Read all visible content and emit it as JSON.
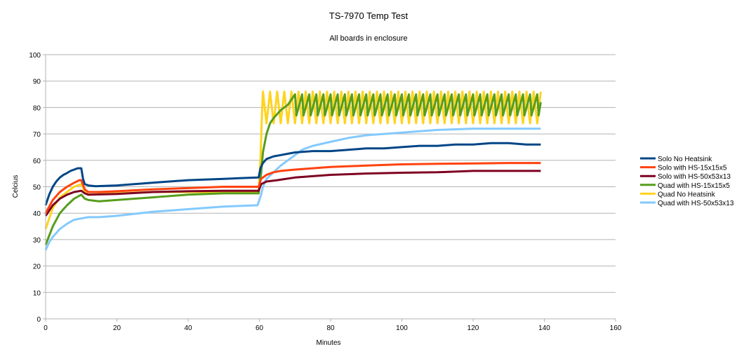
{
  "chart_data": {
    "type": "line",
    "title": "TS-7970 Temp Test",
    "subtitle": "All boards in enclosure",
    "xlabel": "Minutes",
    "ylabel": "Celcius",
    "xlim": [
      0,
      160
    ],
    "ylim": [
      0,
      100
    ],
    "xticks": [
      0,
      20,
      40,
      60,
      80,
      100,
      120,
      140,
      160
    ],
    "yticks": [
      0,
      10,
      20,
      30,
      40,
      50,
      60,
      70,
      80,
      90,
      100
    ],
    "grid": "horizontal",
    "legend_position": "right",
    "series": [
      {
        "name": "Solo No Heatsink",
        "color": "#004586",
        "points": [
          [
            0,
            43
          ],
          [
            1,
            47
          ],
          [
            2,
            50
          ],
          [
            3,
            52
          ],
          [
            4,
            53.5
          ],
          [
            5,
            54.5
          ],
          [
            6,
            55.2
          ],
          [
            7,
            56
          ],
          [
            8,
            56.5
          ],
          [
            9,
            57
          ],
          [
            10,
            57
          ],
          [
            10.5,
            53
          ],
          [
            11,
            51
          ],
          [
            12,
            50.5
          ],
          [
            14,
            50.2
          ],
          [
            20,
            50.5
          ],
          [
            30,
            51.5
          ],
          [
            40,
            52.5
          ],
          [
            50,
            53
          ],
          [
            55,
            53.3
          ],
          [
            59.8,
            53.5
          ],
          [
            60.3,
            57
          ],
          [
            61,
            59
          ],
          [
            62,
            60.5
          ],
          [
            64,
            61.5
          ],
          [
            66,
            62
          ],
          [
            68,
            62.5
          ],
          [
            70,
            63
          ],
          [
            75,
            63.5
          ],
          [
            80,
            63.5
          ],
          [
            85,
            64
          ],
          [
            90,
            64.5
          ],
          [
            95,
            64.5
          ],
          [
            100,
            65
          ],
          [
            105,
            65.5
          ],
          [
            110,
            65.5
          ],
          [
            115,
            66
          ],
          [
            120,
            66
          ],
          [
            125,
            66.5
          ],
          [
            130,
            66.5
          ],
          [
            135,
            66
          ],
          [
            139,
            66
          ]
        ]
      },
      {
        "name": "Solo with HS-15x15x5",
        "color": "#ff420e",
        "points": [
          [
            0,
            40
          ],
          [
            2,
            45
          ],
          [
            4,
            48
          ],
          [
            6,
            50
          ],
          [
            8,
            51.5
          ],
          [
            9.5,
            52.5
          ],
          [
            10,
            52.5
          ],
          [
            11,
            49
          ],
          [
            12,
            48
          ],
          [
            15,
            48
          ],
          [
            20,
            48.3
          ],
          [
            30,
            49
          ],
          [
            40,
            49.5
          ],
          [
            50,
            50
          ],
          [
            59.8,
            50
          ],
          [
            60.5,
            53
          ],
          [
            62,
            54.5
          ],
          [
            64,
            55.5
          ],
          [
            66,
            56
          ],
          [
            70,
            56.5
          ],
          [
            75,
            57
          ],
          [
            80,
            57.5
          ],
          [
            90,
            58
          ],
          [
            100,
            58.5
          ],
          [
            110,
            58.7
          ],
          [
            120,
            58.8
          ],
          [
            130,
            59
          ],
          [
            139,
            59
          ]
        ]
      },
      {
        "name": "Solo with HS-50x53x13",
        "color": "#7e0021",
        "points": [
          [
            0,
            39
          ],
          [
            2,
            43
          ],
          [
            4,
            45.5
          ],
          [
            6,
            47
          ],
          [
            8,
            48
          ],
          [
            10,
            48.5
          ],
          [
            11,
            47.5
          ],
          [
            12,
            47
          ],
          [
            20,
            47.3
          ],
          [
            30,
            48
          ],
          [
            40,
            48.3
          ],
          [
            50,
            48.5
          ],
          [
            59.8,
            48.5
          ],
          [
            60.5,
            51
          ],
          [
            62,
            52
          ],
          [
            65,
            52.5
          ],
          [
            70,
            53.5
          ],
          [
            75,
            54
          ],
          [
            80,
            54.5
          ],
          [
            90,
            55
          ],
          [
            100,
            55.3
          ],
          [
            110,
            55.5
          ],
          [
            120,
            56
          ],
          [
            130,
            56
          ],
          [
            139,
            56
          ]
        ]
      },
      {
        "name": "Quad with HS-15x15x5",
        "color": "#579d1c",
        "points": [
          [
            0,
            28
          ],
          [
            2,
            35
          ],
          [
            4,
            40
          ],
          [
            6,
            43
          ],
          [
            8,
            45.5
          ],
          [
            10,
            47
          ],
          [
            11,
            45.5
          ],
          [
            12,
            45
          ],
          [
            15,
            44.5
          ],
          [
            20,
            45
          ],
          [
            30,
            46
          ],
          [
            40,
            47
          ],
          [
            50,
            47.5
          ],
          [
            59.8,
            47.5
          ],
          [
            60.5,
            55
          ],
          [
            61,
            63
          ],
          [
            62,
            70
          ],
          [
            63,
            74
          ],
          [
            64,
            76
          ],
          [
            66,
            79
          ],
          [
            68,
            81
          ],
          [
            70,
            85
          ],
          [
            70.4,
            77
          ],
          [
            72,
            85
          ],
          [
            72.4,
            77
          ],
          [
            74,
            85
          ],
          [
            74.4,
            77
          ],
          [
            76,
            85
          ],
          [
            76.4,
            77
          ],
          [
            78,
            85
          ],
          [
            78.4,
            77
          ],
          [
            80,
            85
          ],
          [
            80.4,
            77
          ],
          [
            82,
            85
          ],
          [
            82.4,
            77
          ],
          [
            84,
            85
          ],
          [
            84.4,
            77
          ],
          [
            86,
            85
          ],
          [
            86.4,
            77
          ],
          [
            88,
            85
          ],
          [
            88.4,
            77
          ],
          [
            90,
            85
          ],
          [
            90.4,
            77
          ],
          [
            92,
            85
          ],
          [
            92.4,
            77
          ],
          [
            94,
            85
          ],
          [
            94.4,
            77
          ],
          [
            96,
            85
          ],
          [
            96.4,
            77
          ],
          [
            98,
            85
          ],
          [
            98.4,
            77
          ],
          [
            100,
            85
          ],
          [
            100.4,
            77
          ],
          [
            102,
            85
          ],
          [
            102.4,
            77
          ],
          [
            104,
            85
          ],
          [
            104.4,
            77
          ],
          [
            106,
            85
          ],
          [
            106.4,
            77
          ],
          [
            108,
            85
          ],
          [
            108.4,
            77
          ],
          [
            110,
            85
          ],
          [
            110.4,
            77
          ],
          [
            112,
            85
          ],
          [
            112.4,
            77
          ],
          [
            114,
            85
          ],
          [
            114.4,
            77
          ],
          [
            116,
            85
          ],
          [
            116.4,
            77
          ],
          [
            118,
            85
          ],
          [
            118.4,
            77
          ],
          [
            120,
            85
          ],
          [
            120.4,
            77
          ],
          [
            122,
            85
          ],
          [
            122.4,
            77
          ],
          [
            124,
            85
          ],
          [
            124.4,
            77
          ],
          [
            126,
            85
          ],
          [
            126.4,
            77
          ],
          [
            128,
            85
          ],
          [
            128.4,
            77
          ],
          [
            130,
            85
          ],
          [
            130.4,
            77
          ],
          [
            132,
            85
          ],
          [
            132.4,
            77
          ],
          [
            134,
            85
          ],
          [
            134.4,
            77
          ],
          [
            136,
            85
          ],
          [
            136.4,
            77
          ],
          [
            138,
            85
          ],
          [
            138.4,
            77
          ],
          [
            139,
            82
          ]
        ]
      },
      {
        "name": "Quad No Heatsink",
        "color": "#ffd320",
        "points": [
          [
            0,
            34
          ],
          [
            2,
            42
          ],
          [
            4,
            46
          ],
          [
            6,
            48
          ],
          [
            8,
            50
          ],
          [
            10,
            51
          ],
          [
            11,
            48
          ],
          [
            12,
            47
          ],
          [
            20,
            47.5
          ],
          [
            30,
            48
          ],
          [
            40,
            48
          ],
          [
            50,
            48
          ],
          [
            59.8,
            48
          ],
          [
            60.3,
            60
          ],
          [
            60.8,
            80
          ],
          [
            61,
            86
          ],
          [
            62,
            74
          ],
          [
            63,
            86
          ],
          [
            64,
            74
          ],
          [
            65,
            86
          ],
          [
            66,
            74
          ],
          [
            67,
            86
          ],
          [
            68,
            74
          ],
          [
            69,
            86
          ],
          [
            70,
            74
          ],
          [
            71,
            86
          ],
          [
            72,
            74
          ],
          [
            73,
            86
          ],
          [
            74,
            74
          ],
          [
            75,
            86
          ],
          [
            76,
            74
          ],
          [
            77,
            86
          ],
          [
            78,
            74
          ],
          [
            79,
            86
          ],
          [
            80,
            74
          ],
          [
            81,
            86
          ],
          [
            82,
            74
          ],
          [
            83,
            86
          ],
          [
            84,
            74
          ],
          [
            85,
            86
          ],
          [
            86,
            74
          ],
          [
            87,
            86
          ],
          [
            88,
            74
          ],
          [
            89,
            86
          ],
          [
            90,
            74
          ],
          [
            91,
            86
          ],
          [
            92,
            74
          ],
          [
            93,
            86
          ],
          [
            94,
            74
          ],
          [
            95,
            86
          ],
          [
            96,
            74
          ],
          [
            97,
            86
          ],
          [
            98,
            74
          ],
          [
            99,
            86
          ],
          [
            100,
            74
          ],
          [
            101,
            86
          ],
          [
            102,
            74
          ],
          [
            103,
            86
          ],
          [
            104,
            74
          ],
          [
            105,
            86
          ],
          [
            106,
            74
          ],
          [
            107,
            86
          ],
          [
            108,
            74
          ],
          [
            109,
            86
          ],
          [
            110,
            74
          ],
          [
            111,
            86
          ],
          [
            112,
            74
          ],
          [
            113,
            86
          ],
          [
            114,
            74
          ],
          [
            115,
            86
          ],
          [
            116,
            74
          ],
          [
            117,
            86
          ],
          [
            118,
            74
          ],
          [
            119,
            86
          ],
          [
            120,
            74
          ],
          [
            121,
            86
          ],
          [
            122,
            74
          ],
          [
            123,
            86
          ],
          [
            124,
            74
          ],
          [
            125,
            86
          ],
          [
            126,
            74
          ],
          [
            127,
            86
          ],
          [
            128,
            74
          ],
          [
            129,
            86
          ],
          [
            130,
            74
          ],
          [
            131,
            86
          ],
          [
            132,
            74
          ],
          [
            133,
            86
          ],
          [
            134,
            74
          ],
          [
            135,
            86
          ],
          [
            136,
            74
          ],
          [
            137,
            86
          ],
          [
            138,
            74
          ],
          [
            139,
            86
          ]
        ]
      },
      {
        "name": "Quad with HS-50x53x13",
        "color": "#83caff",
        "points": [
          [
            0,
            26
          ],
          [
            1,
            29
          ],
          [
            2,
            31
          ],
          [
            4,
            34
          ],
          [
            6,
            36
          ],
          [
            8,
            37.5
          ],
          [
            10,
            38
          ],
          [
            12,
            38.5
          ],
          [
            15,
            38.5
          ],
          [
            20,
            39
          ],
          [
            30,
            40.5
          ],
          [
            40,
            41.5
          ],
          [
            50,
            42.5
          ],
          [
            59.5,
            43
          ],
          [
            60.5,
            47
          ],
          [
            61,
            50
          ],
          [
            62,
            53
          ],
          [
            64,
            55.5
          ],
          [
            66,
            58
          ],
          [
            68,
            60
          ],
          [
            70,
            62
          ],
          [
            72,
            64
          ],
          [
            75,
            65.5
          ],
          [
            80,
            67
          ],
          [
            85,
            68.5
          ],
          [
            90,
            69.5
          ],
          [
            95,
            70
          ],
          [
            100,
            70.5
          ],
          [
            105,
            71
          ],
          [
            110,
            71.5
          ],
          [
            120,
            72
          ],
          [
            130,
            72
          ],
          [
            139,
            72
          ]
        ]
      }
    ]
  }
}
